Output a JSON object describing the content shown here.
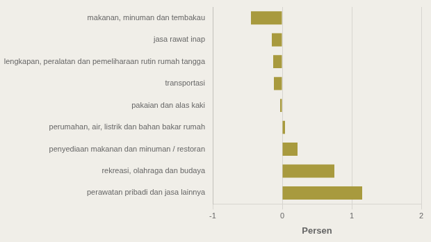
{
  "chart_data": {
    "type": "bar",
    "orientation": "horizontal",
    "categories": [
      "perawatan pribadi dan jasa lainnya",
      "rekreasi, olahraga dan budaya",
      "penyediaan makanan dan minuman / restoran",
      "perumahan, air, listrik dan bahan bakar rumah",
      "pakaian dan alas kaki",
      "transportasi",
      "perlengkapan, peralatan dan pemeliharaan rutin rumah tangga",
      "jasa rawat inap",
      "makanan, minuman dan tembakau"
    ],
    "values": [
      1.15,
      0.75,
      0.22,
      0.04,
      -0.03,
      -0.12,
      -0.13,
      -0.15,
      -0.45
    ],
    "color": "#A89A3E",
    "xlabel": "Persen",
    "xlim": [
      -1,
      2
    ],
    "xticks": [
      -1,
      0,
      1,
      2
    ],
    "grid": true
  }
}
